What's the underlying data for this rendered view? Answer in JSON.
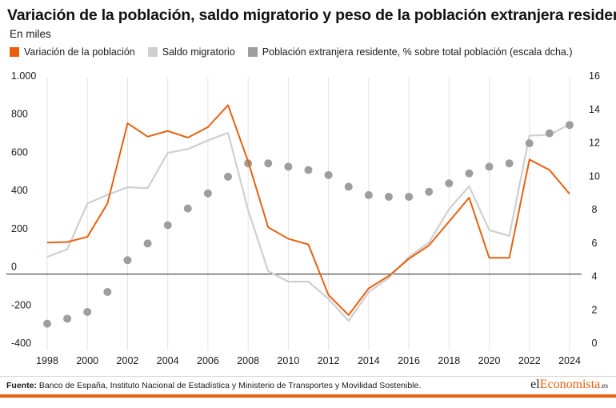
{
  "header": {
    "title": "Variación de la población, saldo migratorio y peso de la población extranjera residente",
    "subtitle": "En miles"
  },
  "legend": [
    {
      "label": "Variación de la población",
      "color": "#e8600f"
    },
    {
      "label": "Saldo migratorio",
      "color": "#cfcfcf"
    },
    {
      "label": "Población extranjera residente, % sobre total población (escala dcha.)",
      "color": "#9e9e9e"
    }
  ],
  "footer": {
    "source_label": "Fuente:",
    "source_text": " Banco de España, Instituto Nacional de Estadística y Ministerio de Transportes y Movilidad Sostenible.",
    "brand_prefix": "el",
    "brand_accent": "Economista",
    "brand_suffix": ".es"
  },
  "chart_data": {
    "type": "line",
    "title": "Variación de la población, saldo migratorio y peso de la población extranjera residente",
    "subtitle": "En miles",
    "x": [
      1998,
      1999,
      2000,
      2001,
      2002,
      2003,
      2004,
      2005,
      2006,
      2007,
      2008,
      2009,
      2010,
      2011,
      2012,
      2013,
      2014,
      2015,
      2016,
      2017,
      2018,
      2019,
      2020,
      2021,
      2022,
      2023,
      2024
    ],
    "x_ticks": [
      1998,
      2000,
      2002,
      2004,
      2006,
      2008,
      2010,
      2012,
      2014,
      2016,
      2018,
      2020,
      2022,
      2024
    ],
    "y_left": {
      "range": [
        -400,
        1000
      ],
      "ticks": [
        -400,
        -200,
        0,
        200,
        400,
        600,
        800,
        1000
      ],
      "tick_labels": [
        "-400",
        "-200",
        "0",
        "200",
        "400",
        "600",
        "800",
        "1.000"
      ]
    },
    "y_right": {
      "range": [
        0,
        16
      ],
      "ticks": [
        0,
        2,
        4,
        6,
        8,
        10,
        12,
        14,
        16
      ]
    },
    "grid": "vertical",
    "legend_position": "top",
    "series": [
      {
        "name": "Variación de la población",
        "type": "line",
        "axis": "left",
        "color": "#e8600f",
        "values": [
          165,
          168,
          195,
          370,
          790,
          720,
          750,
          715,
          770,
          885,
          590,
          245,
          185,
          155,
          -110,
          -215,
          -75,
          -10,
          80,
          150,
          275,
          400,
          85,
          85,
          600,
          545,
          420
        ]
      },
      {
        "name": "Saldo migratorio",
        "type": "line",
        "axis": "left",
        "color": "#cfcfcf",
        "values": [
          90,
          130,
          370,
          415,
          455,
          450,
          635,
          655,
          700,
          740,
          335,
          15,
          -40,
          -40,
          -130,
          -245,
          -95,
          -20,
          90,
          165,
          340,
          460,
          230,
          200,
          725,
          730,
          785
        ]
      },
      {
        "name": "Población extranjera residente, % sobre total población (escala dcha.)",
        "type": "scatter",
        "axis": "right",
        "color": "#9e9e9e",
        "values": [
          1.6,
          1.9,
          2.3,
          3.5,
          5.4,
          6.4,
          7.5,
          8.5,
          9.4,
          10.4,
          11.2,
          11.2,
          11.0,
          10.8,
          10.5,
          9.8,
          9.3,
          9.2,
          9.2,
          9.5,
          10.0,
          10.6,
          11.0,
          11.2,
          12.4,
          13.0,
          13.5
        ]
      }
    ]
  }
}
